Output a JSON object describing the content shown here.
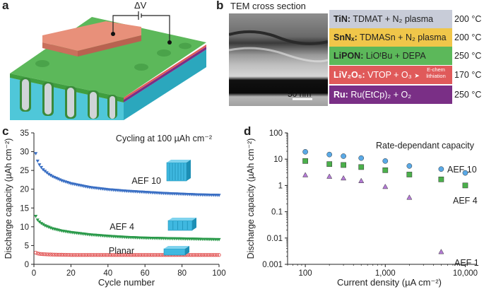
{
  "panels": {
    "a": "a",
    "b": "b",
    "c": "c",
    "d": "d"
  },
  "panel_a": {
    "voltage_label": "ΔV"
  },
  "panel_b": {
    "title": "TEM cross section",
    "scale_bar": "50 nm",
    "layers": [
      {
        "material": "TiN:",
        "process": "TDMAT + N₂ plasma",
        "temperature": "200 °C",
        "color": "#c8ccd8",
        "text_color": "#222222"
      },
      {
        "material": "SnNₓ:",
        "process": "TDMASn + N₂ plasma",
        "temperature": "200 °C",
        "color": "#f0c64a",
        "text_color": "#222222"
      },
      {
        "material": "LiPON:",
        "process": "LiOᵗBu + DEPA",
        "temperature": "250 °C",
        "color": "#5cb85a",
        "text_color": "#222222"
      },
      {
        "material": "LiV₂O₅:",
        "process": "VTOP + O₃",
        "extra": "E-chem lithiation",
        "temperature": "170 °C",
        "color": "#e05a5a",
        "text_color": "#ffffff"
      },
      {
        "material": "Ru:",
        "process": "Ru(EtCp)₂ + O₂",
        "temperature": "250 °C",
        "color": "#7a2f86",
        "text_color": "#ffffff"
      }
    ],
    "extra_line1": "E-chem",
    "extra_line2": "lithiation"
  },
  "chart_data": [
    {
      "type": "scatter",
      "title": "Cycling at 100 µAh cm⁻²",
      "xlabel": "Cycle number",
      "ylabel": "Discharge capacity (µAh cm⁻²)",
      "xlim": [
        0,
        100
      ],
      "ylim": [
        0,
        35
      ],
      "xticks": [
        0,
        20,
        40,
        60,
        80,
        100
      ],
      "yticks": [
        0,
        5,
        10,
        15,
        20,
        25,
        30,
        35
      ],
      "series": [
        {
          "name": "AEF 10",
          "color": "#3a6fc4",
          "marker": "triangle-down",
          "x": [
            1,
            2,
            3,
            4,
            5,
            6,
            8,
            10,
            15,
            20,
            30,
            40,
            50,
            60,
            70,
            80,
            90,
            100
          ],
          "y": [
            29.5,
            27.5,
            26.5,
            25.8,
            25.2,
            24.8,
            24.0,
            23.4,
            22.3,
            21.5,
            20.5,
            19.9,
            19.5,
            19.2,
            18.9,
            18.7,
            18.5,
            18.4
          ]
        },
        {
          "name": "AEF 4",
          "color": "#2a9a4a",
          "marker": "triangle-down",
          "x": [
            1,
            2,
            3,
            4,
            5,
            6,
            8,
            10,
            15,
            20,
            30,
            40,
            50,
            60,
            70,
            80,
            90,
            100
          ],
          "y": [
            12.8,
            11.8,
            11.3,
            10.9,
            10.6,
            10.3,
            9.9,
            9.5,
            8.9,
            8.5,
            7.9,
            7.5,
            7.2,
            7.0,
            6.9,
            6.8,
            6.7,
            6.6
          ]
        },
        {
          "name": "Planar",
          "color": "#e04a4a",
          "marker": "circle",
          "x": [
            1,
            2,
            3,
            5,
            10,
            20,
            30,
            40,
            50,
            60,
            70,
            80,
            90,
            100
          ],
          "y": [
            3.1,
            2.9,
            2.8,
            2.7,
            2.6,
            2.5,
            2.5,
            2.5,
            2.5,
            2.5,
            2.5,
            2.5,
            2.5,
            2.5
          ]
        }
      ]
    },
    {
      "type": "scatter",
      "title": "Rate-dependant capacity",
      "xlabel": "Current density (µA cm⁻²)",
      "ylabel": "Discharge capacity (µAh cm⁻²)",
      "xscale": "log",
      "yscale": "log",
      "xlim": [
        60,
        14000
      ],
      "ylim": [
        0.001,
        100
      ],
      "xticks": [
        100,
        1000,
        10000
      ],
      "xtick_labels": [
        "100",
        "1,000",
        "10,000"
      ],
      "yticks": [
        0.001,
        0.01,
        0.1,
        1,
        10,
        100
      ],
      "ytick_labels": [
        "0.001",
        "0.01",
        "0.1",
        "1",
        "10",
        "100"
      ],
      "series": [
        {
          "name": "AEF 10",
          "color": "#5aa9e6",
          "marker": "circle",
          "x": [
            100,
            200,
            300,
            500,
            1000,
            2000,
            5000,
            10000
          ],
          "y": [
            19,
            15,
            13,
            11,
            8.5,
            5.5,
            4.2,
            3.0
          ]
        },
        {
          "name": "AEF 4",
          "color": "#4bb04b",
          "marker": "square",
          "x": [
            100,
            200,
            300,
            500,
            1000,
            2000,
            5000,
            10000
          ],
          "y": [
            8.5,
            6.5,
            6.0,
            5.0,
            3.8,
            2.6,
            1.7,
            1.0
          ]
        },
        {
          "name": "AEF 1",
          "color": "#b47ad6",
          "marker": "triangle-up",
          "x": [
            100,
            200,
            300,
            500,
            1000,
            2000,
            5000
          ],
          "y": [
            2.5,
            2.2,
            1.9,
            1.5,
            0.9,
            0.35,
            0.003
          ]
        }
      ]
    }
  ]
}
